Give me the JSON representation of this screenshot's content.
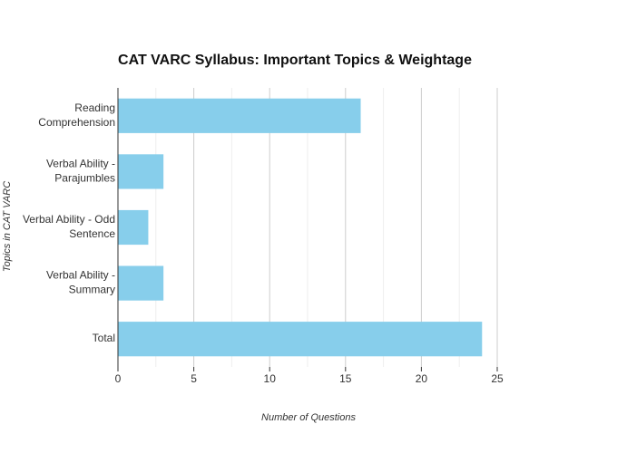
{
  "chart_data": {
    "type": "bar",
    "orientation": "horizontal",
    "title": "CAT VARC Syllabus: Important Topics & Weightage",
    "x_label": "Number of Questions",
    "y_label": "Topics in CAT VARC",
    "categories": [
      "Reading\nComprehension",
      "Verbal Ability -\nParajumbles",
      "Verbal Ability - Odd\nSentence",
      "Verbal Ability -\nSummary",
      "Total"
    ],
    "values": [
      16,
      3,
      2,
      3,
      24
    ],
    "color": "#87ceeb",
    "xlim": [
      0,
      25
    ],
    "xticks": [
      0,
      5,
      10,
      15,
      20,
      25
    ],
    "minor_xticks": [
      2.5,
      7.5,
      12.5,
      17.5,
      22.5
    ],
    "grid": true
  }
}
